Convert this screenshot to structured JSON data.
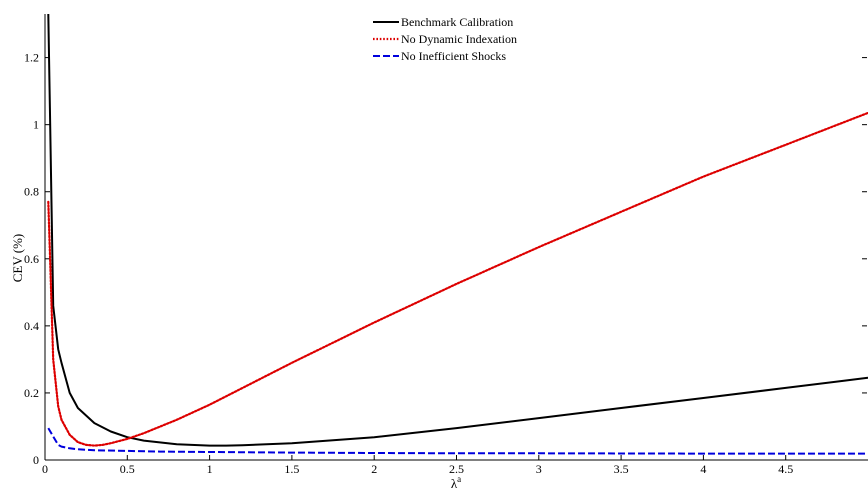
{
  "chart_data": {
    "type": "line",
    "xlabel": "λ",
    "xlabel_superscript": "a",
    "ylabel": "CEV (%)",
    "xlim": [
      0,
      5
    ],
    "ylim": [
      0,
      1.33
    ],
    "xticks": [
      0,
      0.5,
      1,
      1.5,
      2,
      2.5,
      3,
      3.5,
      4,
      4.5
    ],
    "xtick_labels": [
      "0",
      "0.5",
      "1",
      "1.5",
      "2",
      "2.5",
      "3",
      "3.5",
      "4",
      "4.5"
    ],
    "yticks": [
      0,
      0.2,
      0.4,
      0.6,
      0.8,
      1,
      1.2
    ],
    "ytick_labels": [
      "0",
      "0.2",
      "0.4",
      "0.6",
      "0.8",
      "1",
      "1.2"
    ],
    "grid": false,
    "legend_position": "top-center",
    "series": [
      {
        "name": "Benchmark Calibration",
        "color": "#000000",
        "style": "solid",
        "x": [
          0.02,
          0.03,
          0.05,
          0.08,
          0.1,
          0.15,
          0.2,
          0.3,
          0.4,
          0.5,
          0.6,
          0.8,
          1.0,
          1.1,
          1.2,
          1.5,
          2.0,
          2.5,
          3.0,
          3.5,
          4.0,
          4.5,
          5.0
        ],
        "y": [
          1.33,
          1.05,
          0.46,
          0.33,
          0.29,
          0.2,
          0.155,
          0.11,
          0.085,
          0.068,
          0.058,
          0.047,
          0.043,
          0.043,
          0.044,
          0.05,
          0.068,
          0.095,
          0.125,
          0.155,
          0.185,
          0.215,
          0.245
        ]
      },
      {
        "name": "No Dynamic Indexation",
        "color": "#dd0000",
        "style": "dotted",
        "x": [
          0.02,
          0.03,
          0.05,
          0.08,
          0.1,
          0.15,
          0.2,
          0.25,
          0.3,
          0.35,
          0.4,
          0.5,
          0.6,
          0.8,
          1.0,
          1.5,
          2.0,
          2.5,
          3.0,
          3.5,
          4.0,
          4.5,
          5.0
        ],
        "y": [
          0.77,
          0.62,
          0.3,
          0.16,
          0.12,
          0.075,
          0.053,
          0.045,
          0.043,
          0.045,
          0.05,
          0.063,
          0.08,
          0.12,
          0.165,
          0.29,
          0.41,
          0.525,
          0.635,
          0.74,
          0.845,
          0.94,
          1.035
        ]
      },
      {
        "name": "No Inefficient Shocks",
        "color": "#0000dd",
        "style": "dashed",
        "x": [
          0.02,
          0.05,
          0.08,
          0.1,
          0.15,
          0.2,
          0.3,
          0.5,
          0.7,
          1.0,
          1.5,
          2.0,
          2.5,
          3.0,
          4.0,
          5.0
        ],
        "y": [
          0.095,
          0.07,
          0.045,
          0.04,
          0.035,
          0.032,
          0.029,
          0.027,
          0.025,
          0.024,
          0.022,
          0.021,
          0.02,
          0.02,
          0.019,
          0.019
        ]
      }
    ]
  }
}
